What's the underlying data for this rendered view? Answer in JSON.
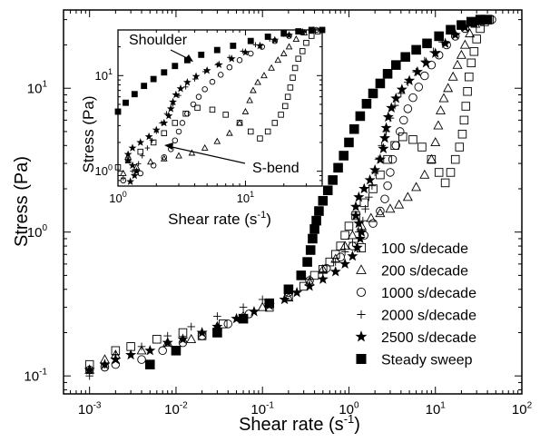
{
  "chart_data": [
    {
      "type": "scatter",
      "xscale": "log",
      "yscale": "log",
      "xlabel": "Shear rate (s",
      "xlabel_sup": "-1",
      "xlabel_end": ")",
      "ylabel": "Stress (Pa)",
      "xlim": [
        0.0005,
        100
      ],
      "ylim": [
        0.075,
        35
      ],
      "x_ticks": [
        {
          "value": 0.001,
          "base": "10",
          "exp": "-3"
        },
        {
          "value": 0.01,
          "base": "10",
          "exp": "-2"
        },
        {
          "value": 0.1,
          "base": "10",
          "exp": "-1"
        },
        {
          "value": 1,
          "base": "10",
          "exp": "0"
        },
        {
          "value": 10,
          "base": "10",
          "exp": "1"
        },
        {
          "value": 100,
          "base": "10",
          "exp": "2"
        }
      ],
      "y_ticks": [
        {
          "value": 0.1,
          "base": "10",
          "exp": "-1"
        },
        {
          "value": 1,
          "base": "10",
          "exp": "0"
        },
        {
          "value": 10,
          "base": "10",
          "exp": "1"
        }
      ],
      "legend_position": "bottom-right",
      "series": [
        {
          "name": "100 s/decade",
          "marker": "square-open",
          "points": [
            [
              0.001,
              0.12
            ],
            [
              0.002,
              0.15
            ],
            [
              0.003,
              0.16
            ],
            [
              0.006,
              0.18
            ],
            [
              0.012,
              0.2
            ],
            [
              0.02,
              0.19
            ],
            [
              0.035,
              0.23
            ],
            [
              0.06,
              0.25
            ],
            [
              0.12,
              0.3
            ],
            [
              0.2,
              0.36
            ],
            [
              0.3,
              0.42
            ],
            [
              0.4,
              0.5
            ],
            [
              0.5,
              0.55
            ],
            [
              0.6,
              0.62
            ],
            [
              0.7,
              0.7
            ],
            [
              0.8,
              0.8
            ],
            [
              0.9,
              0.95
            ],
            [
              1.0,
              1.1
            ],
            [
              1.2,
              1.3
            ],
            [
              1.5,
              1.6
            ],
            [
              1.9,
              2.0
            ],
            [
              2.3,
              2.5
            ],
            [
              2.8,
              3.2
            ],
            [
              3.4,
              4.0
            ],
            [
              4.2,
              4.6
            ],
            [
              5.5,
              4.4
            ],
            [
              7.0,
              3.9
            ],
            [
              9.0,
              3.2
            ],
            [
              11.0,
              2.6
            ],
            [
              13.0,
              2.2
            ],
            [
              15.0,
              2.6
            ],
            [
              17.0,
              3.2
            ],
            [
              19.0,
              3.9
            ],
            [
              20.5,
              4.8
            ],
            [
              21.5,
              6.0
            ],
            [
              22.5,
              7.5
            ],
            [
              23.5,
              9.5
            ],
            [
              24.5,
              12.0
            ],
            [
              26.0,
              15.0
            ],
            [
              28.0,
              18.0
            ],
            [
              30.0,
              22.0
            ],
            [
              33.0,
              26.0
            ],
            [
              37.0,
              29.0
            ],
            [
              42.0,
              30.0
            ]
          ]
        },
        {
          "name": "200 s/decade",
          "marker": "triangle-open",
          "points": [
            [
              0.001,
              0.11
            ],
            [
              0.0015,
              0.13
            ],
            [
              0.002,
              0.14
            ],
            [
              0.004,
              0.15
            ],
            [
              0.008,
              0.17
            ],
            [
              0.015,
              0.18
            ],
            [
              0.03,
              0.22
            ],
            [
              0.06,
              0.26
            ],
            [
              0.1,
              0.3
            ],
            [
              0.2,
              0.35
            ],
            [
              0.35,
              0.45
            ],
            [
              0.5,
              0.55
            ],
            [
              0.7,
              0.65
            ],
            [
              0.9,
              0.8
            ],
            [
              1.1,
              0.95
            ],
            [
              1.4,
              1.1
            ],
            [
              1.8,
              1.25
            ],
            [
              2.3,
              1.35
            ],
            [
              3.0,
              1.45
            ],
            [
              3.8,
              1.55
            ],
            [
              4.8,
              1.75
            ],
            [
              6.0,
              2.05
            ],
            [
              7.5,
              2.5
            ],
            [
              9.0,
              3.2
            ],
            [
              10.0,
              4.2
            ],
            [
              10.8,
              5.5
            ],
            [
              11.5,
              7.0
            ],
            [
              12.5,
              8.5
            ],
            [
              14.0,
              10.0
            ],
            [
              16.0,
              12.0
            ],
            [
              18.0,
              14.5
            ],
            [
              20.0,
              17.0
            ],
            [
              22.0,
              20.0
            ],
            [
              25.0,
              24.0
            ],
            [
              29.0,
              28.0
            ],
            [
              34.0,
              30.0
            ]
          ]
        },
        {
          "name": "1000 s/decade",
          "marker": "circle-open",
          "points": [
            [
              0.001,
              0.11
            ],
            [
              0.0015,
              0.115
            ],
            [
              0.002,
              0.12
            ],
            [
              0.004,
              0.13
            ],
            [
              0.007,
              0.15
            ],
            [
              0.012,
              0.17
            ],
            [
              0.02,
              0.19
            ],
            [
              0.04,
              0.23
            ],
            [
              0.07,
              0.27
            ],
            [
              0.12,
              0.32
            ],
            [
              0.2,
              0.38
            ],
            [
              0.35,
              0.46
            ],
            [
              0.55,
              0.56
            ],
            [
              0.8,
              0.67
            ],
            [
              1.1,
              0.8
            ],
            [
              1.5,
              0.95
            ],
            [
              1.9,
              1.15
            ],
            [
              2.3,
              1.4
            ],
            [
              2.6,
              1.7
            ],
            [
              2.8,
              2.1
            ],
            [
              3.0,
              2.6
            ],
            [
              3.2,
              3.2
            ],
            [
              3.5,
              4.0
            ],
            [
              3.9,
              5.0
            ],
            [
              4.3,
              6.0
            ],
            [
              4.8,
              7.2
            ],
            [
              5.5,
              8.6
            ],
            [
              6.4,
              10.2
            ],
            [
              7.5,
              12.2
            ],
            [
              9.0,
              14.5
            ],
            [
              11.0,
              17.0
            ],
            [
              13.5,
              20.0
            ],
            [
              17.0,
              23.0
            ],
            [
              22.0,
              26.0
            ],
            [
              28.0,
              28.5
            ],
            [
              36.0,
              30.0
            ],
            [
              45.0,
              30.0
            ]
          ]
        },
        {
          "name": "2000 s/decade",
          "marker": "plus",
          "points": [
            [
              0.001,
              0.1
            ],
            [
              0.0015,
              0.12
            ],
            [
              0.002,
              0.14
            ],
            [
              0.004,
              0.16
            ],
            [
              0.008,
              0.19
            ],
            [
              0.015,
              0.22
            ],
            [
              0.03,
              0.26
            ],
            [
              0.06,
              0.3
            ],
            [
              0.1,
              0.34
            ],
            [
              0.2,
              0.4
            ],
            [
              0.35,
              0.47
            ],
            [
              0.5,
              0.53
            ],
            [
              0.7,
              0.62
            ],
            [
              0.9,
              0.73
            ],
            [
              1.1,
              0.85
            ],
            [
              1.3,
              1.0
            ],
            [
              1.45,
              1.2
            ],
            [
              1.55,
              1.45
            ],
            [
              1.7,
              1.75
            ],
            [
              1.85,
              2.1
            ],
            [
              2.0,
              2.6
            ],
            [
              2.2,
              3.2
            ],
            [
              2.4,
              4.0
            ],
            [
              2.7,
              5.0
            ],
            [
              3.0,
              6.2
            ],
            [
              3.4,
              7.6
            ],
            [
              4.0,
              9.2
            ],
            [
              4.8,
              11.0
            ],
            [
              6.0,
              13.0
            ],
            [
              7.5,
              15.5
            ],
            [
              9.5,
              18.0
            ],
            [
              12.0,
              21.0
            ],
            [
              15.5,
              24.0
            ],
            [
              20.0,
              27.0
            ],
            [
              26.0,
              29.0
            ],
            [
              32.0,
              30.0
            ]
          ]
        },
        {
          "name": "2500 s/decade",
          "marker": "star",
          "points": [
            [
              0.001,
              0.11
            ],
            [
              0.0015,
              0.12
            ],
            [
              0.002,
              0.13
            ],
            [
              0.003,
              0.14
            ],
            [
              0.005,
              0.15
            ],
            [
              0.008,
              0.17
            ],
            [
              0.012,
              0.18
            ],
            [
              0.02,
              0.2
            ],
            [
              0.03,
              0.22
            ],
            [
              0.05,
              0.25
            ],
            [
              0.08,
              0.28
            ],
            [
              0.12,
              0.31
            ],
            [
              0.18,
              0.34
            ],
            [
              0.25,
              0.38
            ],
            [
              0.35,
              0.42
            ],
            [
              0.5,
              0.47
            ],
            [
              0.7,
              0.53
            ],
            [
              0.9,
              0.6
            ],
            [
              1.1,
              0.68
            ],
            [
              1.25,
              0.78
            ],
            [
              1.35,
              0.9
            ],
            [
              1.4,
              1.0
            ],
            [
              1.3,
              1.15
            ],
            [
              1.2,
              1.3
            ],
            [
              1.2,
              1.5
            ],
            [
              1.3,
              1.75
            ],
            [
              1.5,
              2.0
            ],
            [
              1.75,
              2.3
            ],
            [
              2.0,
              2.7
            ],
            [
              2.3,
              3.2
            ],
            [
              2.5,
              3.8
            ],
            [
              2.6,
              4.5
            ],
            [
              2.7,
              5.3
            ],
            [
              2.85,
              6.3
            ],
            [
              3.1,
              7.3
            ],
            [
              3.5,
              8.5
            ],
            [
              4.1,
              9.8
            ],
            [
              5.0,
              11.3
            ],
            [
              6.2,
              13.0
            ],
            [
              7.8,
              15.0
            ],
            [
              10.0,
              17.5
            ],
            [
              13.0,
              20.5
            ],
            [
              17.0,
              23.5
            ],
            [
              22.0,
              26.5
            ],
            [
              28.0,
              28.5
            ]
          ]
        },
        {
          "name": "Steady sweep",
          "marker": "square-filled",
          "points": [
            [
              0.005,
              0.12
            ],
            [
              0.01,
              0.15
            ],
            [
              0.03,
              0.2
            ],
            [
              0.06,
              0.25
            ],
            [
              0.12,
              0.32
            ],
            [
              0.2,
              0.4
            ],
            [
              0.28,
              0.5
            ],
            [
              0.33,
              0.62
            ],
            [
              0.36,
              0.75
            ],
            [
              0.38,
              0.9
            ],
            [
              0.4,
              1.05
            ],
            [
              0.42,
              1.2
            ],
            [
              0.45,
              1.4
            ],
            [
              0.5,
              1.65
            ],
            [
              0.57,
              1.95
            ],
            [
              0.65,
              2.3
            ],
            [
              0.75,
              2.8
            ],
            [
              0.87,
              3.4
            ],
            [
              1.0,
              4.2
            ],
            [
              1.15,
              5.2
            ],
            [
              1.35,
              6.4
            ],
            [
              1.6,
              7.8
            ],
            [
              1.9,
              9.2
            ],
            [
              2.3,
              10.8
            ],
            [
              2.8,
              12.6
            ],
            [
              3.5,
              14.5
            ],
            [
              4.5,
              16.5
            ],
            [
              6.0,
              18.5
            ],
            [
              8.0,
              20.5
            ],
            [
              11.0,
              23.0
            ],
            [
              15.0,
              25.5
            ],
            [
              20.0,
              27.5
            ],
            [
              26.0,
              29.0
            ],
            [
              33.0,
              30.0
            ],
            [
              40.0,
              30.0
            ]
          ]
        }
      ]
    },
    {
      "type": "scatter",
      "xscale": "log",
      "yscale": "log",
      "xlabel": "Shear rate (s",
      "xlabel_sup": "-1",
      "xlabel_end": ")",
      "ylabel": "Stress (Pa)",
      "xlim": [
        1,
        40
      ],
      "ylim": [
        0.7,
        30
      ],
      "x_ticks": [
        {
          "value": 1,
          "base": "10",
          "exp": "0"
        },
        {
          "value": 10,
          "base": "10",
          "exp": "1"
        }
      ],
      "y_ticks": [
        {
          "value": 1,
          "base": "10",
          "exp": "0"
        },
        {
          "value": 10,
          "base": "10",
          "exp": "1"
        }
      ],
      "annotations": [
        {
          "text": "Shoulder",
          "target": [
            3.0,
            13.0
          ]
        },
        {
          "text": "S-bend",
          "target": [
            1.8,
            2.2
          ]
        }
      ],
      "series_refs": [
        "100 s/decade",
        "200 s/decade",
        "1000 s/decade",
        "2000 s/decade",
        "2500 s/decade",
        "Steady sweep"
      ]
    }
  ]
}
